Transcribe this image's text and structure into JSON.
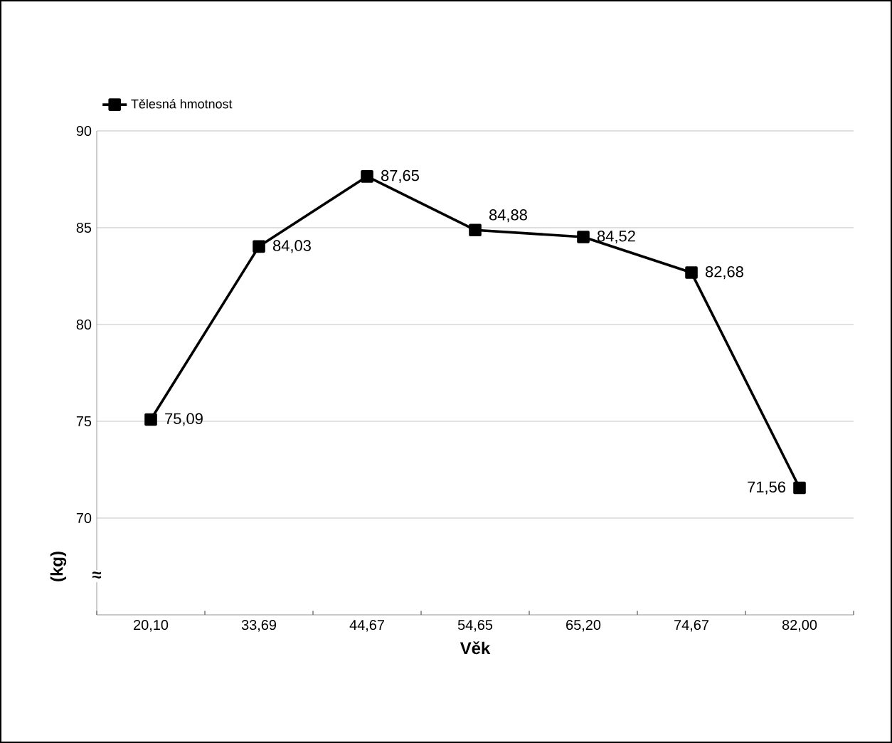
{
  "chart_data": {
    "type": "line",
    "xlabel": "Věk",
    "ylabel": "(kg)",
    "categories": [
      "20,10",
      "33,69",
      "44,67",
      "54,65",
      "65,20",
      "74,67",
      "82,00"
    ],
    "series": [
      {
        "name": "Tělesná hmotnost",
        "color": "#000000",
        "values": [
          75.09,
          84.03,
          87.65,
          84.88,
          84.52,
          82.68,
          71.56
        ],
        "value_labels": [
          "75,09",
          "84,03",
          "87,65",
          "84,88",
          "84,52",
          "82,68",
          "71,56"
        ]
      }
    ],
    "ylim": [
      65,
      90
    ],
    "yticks": [
      70,
      75,
      80,
      85,
      90
    ],
    "grid": "y",
    "legend": "top left",
    "marker": "square",
    "line_style": "solid",
    "annotations": [
      {
        "text": "≈",
        "y": 67
      }
    ]
  }
}
